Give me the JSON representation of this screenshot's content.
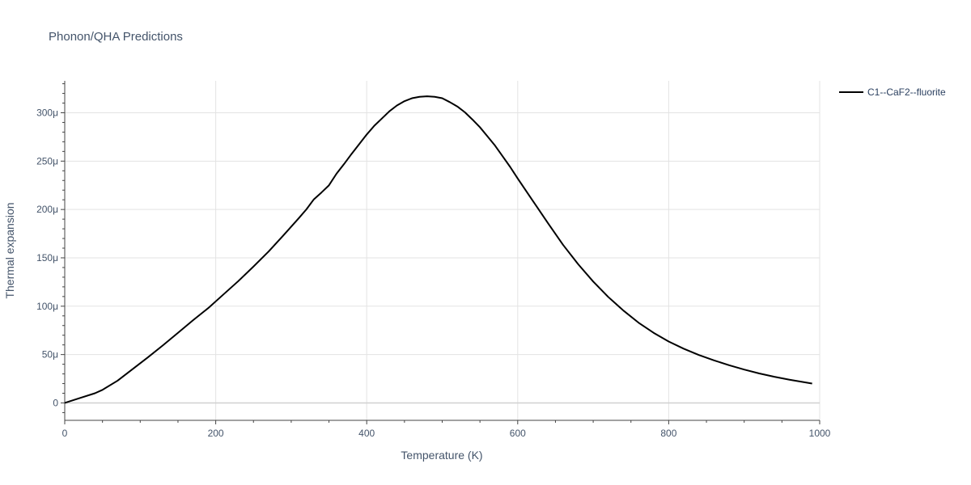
{
  "chart_data": {
    "type": "line",
    "title": "Phonon/QHA Predictions",
    "xlabel": "Temperature (K)",
    "ylabel": "Thermal expansion",
    "xlim": [
      0,
      1000
    ],
    "ylim": [
      -1.8e-05,
      0.000333
    ],
    "x_ticks": [
      0,
      200,
      400,
      600,
      800,
      1000
    ],
    "x_tick_labels": [
      "0",
      "200",
      "400",
      "600",
      "800",
      "1000"
    ],
    "y_ticks": [
      0,
      5e-05,
      0.0001,
      0.00015,
      0.0002,
      0.00025,
      0.0003
    ],
    "y_tick_labels": [
      "0",
      "50μ",
      "100μ",
      "150μ",
      "200μ",
      "250μ",
      "300μ"
    ],
    "grid": true,
    "legend_position": "top-right",
    "series": [
      {
        "name": "C1--CaF2--fluorite",
        "color": "#000000",
        "x": [
          0,
          20,
          40,
          50,
          70,
          90,
          110,
          130,
          150,
          170,
          190,
          210,
          230,
          250,
          270,
          290,
          310,
          320,
          330,
          340,
          350,
          360,
          370,
          380,
          390,
          400,
          410,
          420,
          430,
          440,
          450,
          460,
          470,
          480,
          490,
          500,
          510,
          520,
          530,
          540,
          550,
          560,
          570,
          580,
          590,
          600,
          620,
          640,
          660,
          680,
          700,
          720,
          740,
          760,
          780,
          800,
          820,
          840,
          860,
          880,
          900,
          920,
          940,
          960,
          990
        ],
        "y": [
          0,
          5e-06,
          1e-05,
          1.35e-05,
          2.3e-05,
          3.5e-05,
          4.7e-05,
          5.95e-05,
          7.25e-05,
          8.55e-05,
          9.8e-05,
          0.000112,
          0.000126,
          0.000141,
          0.0001565,
          0.0001735,
          0.000191,
          0.0002,
          0.0002105,
          0.0002175,
          0.000225,
          0.000237,
          0.000247,
          0.0002575,
          0.0002675,
          0.0002775,
          0.0002865,
          0.000294,
          0.0003015,
          0.0003075,
          0.000312,
          0.000315,
          0.0003165,
          0.000317,
          0.0003165,
          0.000315,
          0.000311,
          0.0003065,
          0.0003005,
          0.000293,
          0.000285,
          0.0002755,
          0.000266,
          0.000255,
          0.000244,
          0.000232,
          0.000209,
          0.000186,
          0.0001635,
          0.0001435,
          0.0001255,
          0.0001095,
          9.55e-05,
          8.3e-05,
          7.25e-05,
          6.35e-05,
          5.6e-05,
          4.95e-05,
          4.4e-05,
          3.9e-05,
          3.45e-05,
          3.05e-05,
          2.7e-05,
          2.4e-05,
          2e-05
        ]
      }
    ]
  }
}
